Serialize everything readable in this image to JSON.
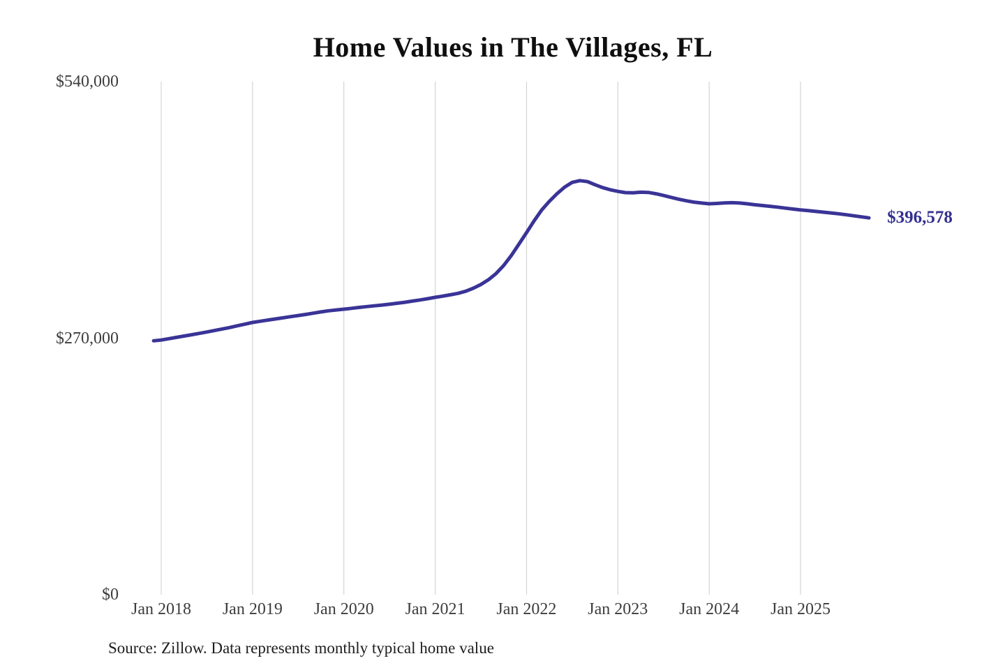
{
  "title": "Home Values in The Villages, FL",
  "source_note": "Source: Zillow. Data represents monthly typical home value",
  "end_label": "$396,578",
  "colors": {
    "line": "#3a3497",
    "grid": "#cccccc",
    "axis_text": "#3d3d3d",
    "title_text": "#0f0f0f",
    "end_label_text": "#34308f"
  },
  "chart_data": {
    "type": "line",
    "title": "Home Values in The Villages, FL",
    "xlabel": "",
    "ylabel": "",
    "ylim": [
      0,
      540000
    ],
    "grid": "vertical-only",
    "legend": "none",
    "y_ticks": [
      {
        "label": "$540,000",
        "value": 540000
      },
      {
        "label": "$270,000",
        "value": 270000
      },
      {
        "label": "$0",
        "value": 0
      }
    ],
    "x_ticks": [
      {
        "label": "Jan 2018",
        "month_index": 1
      },
      {
        "label": "Jan 2019",
        "month_index": 13
      },
      {
        "label": "Jan 2020",
        "month_index": 25
      },
      {
        "label": "Jan 2021",
        "month_index": 37
      },
      {
        "label": "Jan 2022",
        "month_index": 49
      },
      {
        "label": "Jan 2023",
        "month_index": 61
      },
      {
        "label": "Jan 2024",
        "month_index": 73
      },
      {
        "label": "Jan 2025",
        "month_index": 85
      }
    ],
    "series": [
      {
        "name": "Monthly typical home value",
        "start_month": "2017-12",
        "end_month": "2025-10",
        "end_value": 396578,
        "values": [
          267200,
          268000,
          269400,
          270800,
          272200,
          273600,
          275000,
          276500,
          278000,
          279600,
          281200,
          283000,
          284800,
          286500,
          287800,
          289000,
          290200,
          291400,
          292600,
          293800,
          295000,
          296300,
          297600,
          298800,
          299700,
          300500,
          301400,
          302300,
          303200,
          304000,
          304800,
          305700,
          306700,
          307800,
          309000,
          310200,
          311500,
          313000,
          314200,
          315600,
          317200,
          319400,
          322500,
          326500,
          331500,
          338000,
          346500,
          357000,
          369000,
          381000,
          393500,
          405000,
          414000,
          422000,
          429000,
          434000,
          435800,
          434800,
          431500,
          428500,
          426200,
          424500,
          423200,
          423000,
          423600,
          423400,
          422000,
          420200,
          418200,
          416300,
          414600,
          413200,
          412200,
          411400,
          411800,
          412300,
          412600,
          412200,
          411400,
          410400,
          409600,
          408800,
          407900,
          406900,
          405900,
          405000,
          404200,
          403400,
          402600,
          401800,
          400900,
          399900,
          398800,
          397700,
          396578
        ]
      }
    ],
    "annotation": {
      "text": "$396,578",
      "position": "line-end"
    }
  }
}
